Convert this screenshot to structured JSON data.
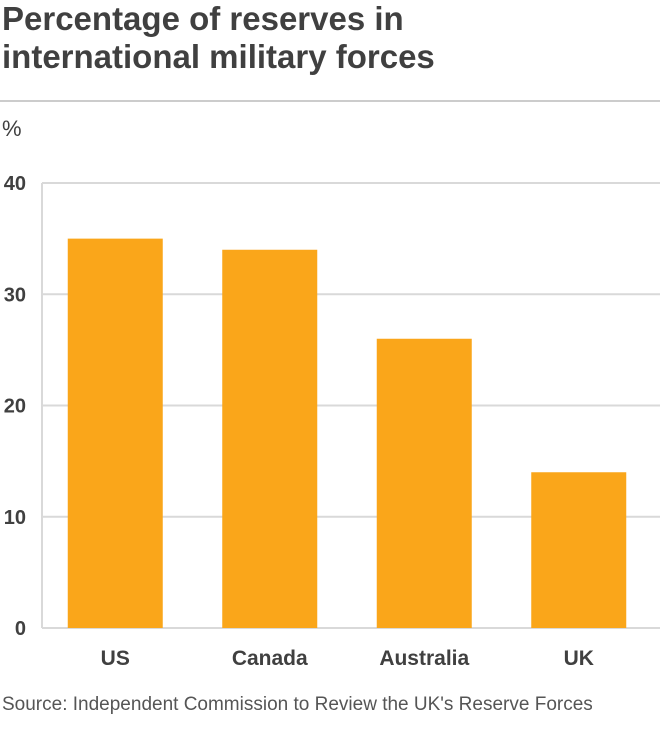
{
  "header": {
    "title_line1": "Percentage of reserves in",
    "title_line2": "international military forces",
    "unit": "%"
  },
  "footer": {
    "source": "Source: Independent Commission to Review the UK's Reserve Forces"
  },
  "colors": {
    "bar": "#faa61a",
    "grid": "#d9d9d9",
    "axis_text": "#404040"
  },
  "chart_data": {
    "type": "bar",
    "title": "Percentage of reserves in international military forces",
    "ylabel": "%",
    "xlabel": "",
    "categories": [
      "US",
      "Canada",
      "Australia",
      "UK"
    ],
    "values": [
      35,
      34,
      26,
      14
    ],
    "ylim": [
      0,
      40
    ],
    "yticks": [
      0,
      10,
      20,
      30,
      40
    ],
    "grid": true,
    "legend": "none"
  }
}
